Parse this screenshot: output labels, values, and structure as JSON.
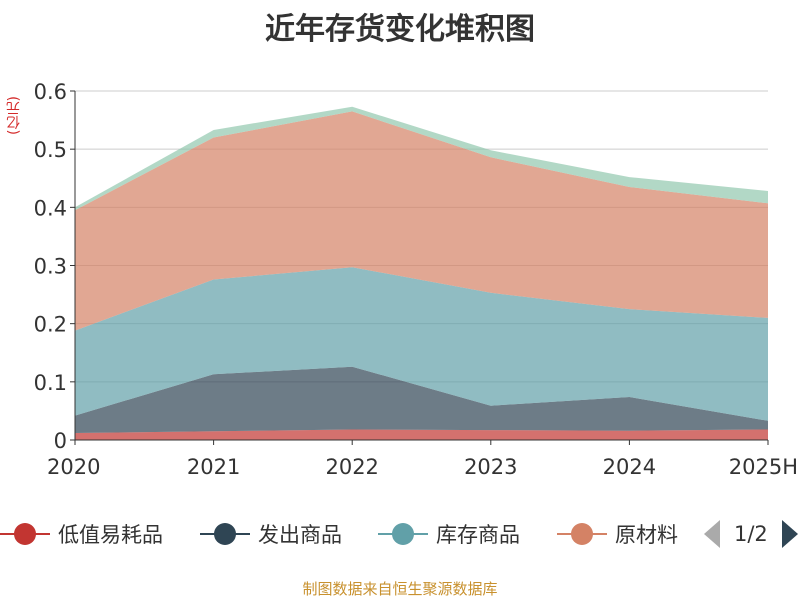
{
  "chart_data": {
    "type": "area",
    "stacked": true,
    "title": "近年存货变化堆积图",
    "ylabel": "(亿元)",
    "xlabel": "",
    "categories": [
      "2020",
      "2021",
      "2022",
      "2023",
      "2024",
      "2025H"
    ],
    "ylim": [
      0,
      0.6
    ],
    "yticks": [
      "0",
      "0.1",
      "0.2",
      "0.3",
      "0.4",
      "0.5",
      "0.6"
    ],
    "grid": true,
    "legend_position": "bottom",
    "series": [
      {
        "name": "低值易耗品",
        "color": "#c23531",
        "values": [
          0.012,
          0.015,
          0.018,
          0.017,
          0.016,
          0.018
        ]
      },
      {
        "name": "发出商品",
        "color": "#2f4554",
        "values": [
          0.03,
          0.098,
          0.108,
          0.042,
          0.058,
          0.015
        ]
      },
      {
        "name": "库存商品",
        "color": "#61a0a8",
        "values": [
          0.146,
          0.163,
          0.171,
          0.194,
          0.151,
          0.177
        ]
      },
      {
        "name": "原材料",
        "color": "#d48265",
        "values": [
          0.207,
          0.244,
          0.268,
          0.233,
          0.21,
          0.197
        ]
      },
      {
        "name": "",
        "color": "#91c7ae",
        "values": [
          0.005,
          0.013,
          0.008,
          0.012,
          0.017,
          0.021
        ]
      }
    ]
  },
  "legend": {
    "visible_items": [
      "低值易耗品",
      "发出商品",
      "库存商品",
      "原材料"
    ],
    "page_text": "1/2"
  },
  "source_note": "制图数据来自恒生聚源数据库"
}
